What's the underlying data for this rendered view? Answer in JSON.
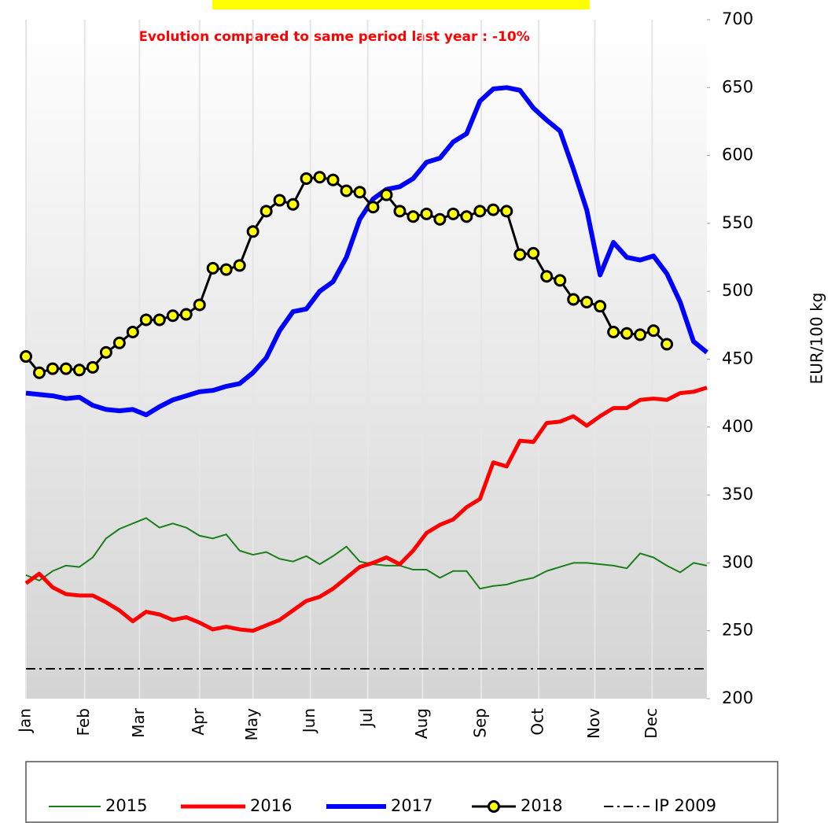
{
  "chart_data": {
    "type": "line",
    "annotation": "Evolution compared to same period last year : -10%",
    "y_label": "EUR/100 kg",
    "xlim": [
      0,
      51
    ],
    "xticks": [
      {
        "value": 0,
        "label": "Jan"
      },
      {
        "value": 4.4,
        "label": "Feb"
      },
      {
        "value": 8.5,
        "label": "Mar"
      },
      {
        "value": 13,
        "label": "Apr"
      },
      {
        "value": 17,
        "label": "May"
      },
      {
        "value": 21.3,
        "label": "Jun"
      },
      {
        "value": 25.6,
        "label": "Jul"
      },
      {
        "value": 29.7,
        "label": "Aug"
      },
      {
        "value": 34.1,
        "label": "Sep"
      },
      {
        "value": 38.4,
        "label": "Oct"
      },
      {
        "value": 42.6,
        "label": "Nov"
      },
      {
        "value": 46.9,
        "label": "Dec"
      }
    ],
    "ylim": [
      200,
      700
    ],
    "yticks": [
      200,
      250,
      300,
      350,
      400,
      450,
      500,
      550,
      600,
      650,
      700
    ],
    "grid": true,
    "legend": "bottom",
    "series": [
      {
        "name": "2015",
        "color": "#1a7f1a",
        "width": 2,
        "values": [
          291,
          287,
          294,
          298,
          297,
          304,
          318,
          325,
          329,
          333,
          326,
          329,
          326,
          320,
          318,
          321,
          309,
          306,
          308,
          303,
          301,
          305,
          299,
          305,
          312,
          301,
          299,
          298,
          298,
          295,
          295,
          289,
          294,
          294,
          281,
          283,
          284,
          287,
          289,
          294,
          297,
          300,
          300,
          299,
          298,
          296,
          307,
          304,
          298,
          293,
          300,
          298
        ]
      },
      {
        "name": "2016",
        "color": "#ff0000",
        "width": 5,
        "values": [
          285,
          292,
          282,
          277,
          276,
          276,
          271,
          265,
          257,
          264,
          262,
          258,
          260,
          256,
          251,
          253,
          251,
          250,
          254,
          258,
          265,
          272,
          275,
          281,
          289,
          297,
          300,
          304,
          299,
          309,
          322,
          328,
          332,
          341,
          347,
          374,
          371,
          390,
          389,
          403,
          404,
          408,
          401,
          408,
          414,
          414,
          420,
          421,
          420,
          425,
          426,
          429
        ]
      },
      {
        "name": "2017",
        "color": "#0000ff",
        "width": 6,
        "values": [
          425,
          424,
          423,
          421,
          422,
          416,
          413,
          412,
          413,
          409,
          415,
          420,
          423,
          426,
          427,
          430,
          432,
          440,
          451,
          471,
          485,
          487,
          500,
          507,
          525,
          553,
          568,
          575,
          577,
          583,
          595,
          598,
          610,
          616,
          640,
          649,
          650,
          648,
          635,
          626,
          618,
          590,
          560,
          512,
          536,
          525,
          523,
          526,
          513,
          492,
          463,
          455
        ]
      },
      {
        "name": "2018",
        "color": "#000000",
        "width": 3,
        "marker_color": "#ffff00",
        "values": [
          452,
          440,
          443,
          443,
          442,
          444,
          455,
          462,
          470,
          479,
          479,
          482,
          483,
          490,
          517,
          516,
          519,
          544,
          559,
          567,
          564,
          583,
          584,
          582,
          574,
          573,
          562,
          571,
          559,
          555,
          557,
          553,
          557,
          555,
          559,
          560,
          559,
          527,
          528,
          511,
          508,
          494,
          492,
          489,
          470,
          469,
          468,
          471,
          461,
          null,
          null,
          null
        ]
      },
      {
        "name": "IP 2009",
        "color": "#000000",
        "width": 2,
        "dash": "12,5,3,5",
        "values": [
          222,
          222,
          222,
          222,
          222,
          222,
          222,
          222,
          222,
          222,
          222,
          222,
          222,
          222,
          222,
          222,
          222,
          222,
          222,
          222,
          222,
          222,
          222,
          222,
          222,
          222,
          222,
          222,
          222,
          222,
          222,
          222,
          222,
          222,
          222,
          222,
          222,
          222,
          222,
          222,
          222,
          222,
          222,
          222,
          222,
          222,
          222,
          222,
          222,
          222,
          222,
          222
        ]
      }
    ]
  }
}
